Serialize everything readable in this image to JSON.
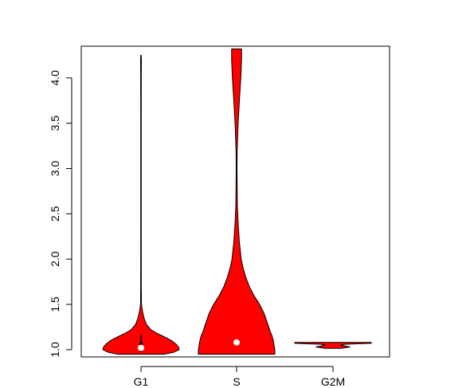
{
  "chart_data": {
    "type": "violin",
    "categories": [
      "G1",
      "S",
      "G2M"
    ],
    "ylim": [
      0.92,
      4.35
    ],
    "yticks": [
      "1.0",
      "1.5",
      "2.0",
      "2.5",
      "3.0",
      "3.5",
      "4.0"
    ],
    "grid": false,
    "legend": "none",
    "fill_color": "#ff0000",
    "median_color": "#ffffff",
    "violins": [
      {
        "name": "G1",
        "min": 0.95,
        "max": 4.25,
        "median": 1.02,
        "q1": 0.98,
        "q3": 1.08,
        "whisker_low": 0.97,
        "whisker_high": 1.17,
        "profile": [
          [
            0.95,
            0.6
          ],
          [
            0.97,
            0.85
          ],
          [
            1.0,
            1.0
          ],
          [
            1.03,
            0.98
          ],
          [
            1.06,
            0.92
          ],
          [
            1.1,
            0.8
          ],
          [
            1.14,
            0.62
          ],
          [
            1.18,
            0.42
          ],
          [
            1.22,
            0.26
          ],
          [
            1.28,
            0.14
          ],
          [
            1.35,
            0.08
          ],
          [
            1.4,
            0.05
          ],
          [
            1.45,
            0.03
          ],
          [
            1.5,
            0.012
          ],
          [
            1.7,
            0.008
          ],
          [
            2.5,
            0.007
          ],
          [
            3.5,
            0.007
          ],
          [
            4.0,
            0.008
          ],
          [
            4.2,
            0.01
          ],
          [
            4.25,
            0.006
          ]
        ]
      },
      {
        "name": "S",
        "min": 0.95,
        "max": 4.32,
        "median": 1.08,
        "profile": [
          [
            0.95,
            1.0
          ],
          [
            1.0,
            1.0
          ],
          [
            1.05,
            0.98
          ],
          [
            1.1,
            0.96
          ],
          [
            1.15,
            0.93
          ],
          [
            1.2,
            0.88
          ],
          [
            1.3,
            0.8
          ],
          [
            1.4,
            0.72
          ],
          [
            1.5,
            0.6
          ],
          [
            1.6,
            0.45
          ],
          [
            1.7,
            0.33
          ],
          [
            1.8,
            0.24
          ],
          [
            1.9,
            0.17
          ],
          [
            2.0,
            0.12
          ],
          [
            2.2,
            0.07
          ],
          [
            2.4,
            0.04
          ],
          [
            2.6,
            0.02
          ],
          [
            3.0,
            0.01
          ],
          [
            3.2,
            0.015
          ],
          [
            3.5,
            0.04
          ],
          [
            3.8,
            0.08
          ],
          [
            4.0,
            0.11
          ],
          [
            4.2,
            0.13
          ],
          [
            4.32,
            0.13
          ]
        ]
      },
      {
        "name": "G2M",
        "min": 1.015,
        "max": 1.08,
        "median": 1.07,
        "profile": [
          [
            1.015,
            0.2
          ],
          [
            1.03,
            0.45
          ],
          [
            1.05,
            0.2
          ],
          [
            1.06,
            0.3
          ],
          [
            1.07,
            1.0
          ],
          [
            1.08,
            1.0
          ]
        ]
      }
    ]
  }
}
